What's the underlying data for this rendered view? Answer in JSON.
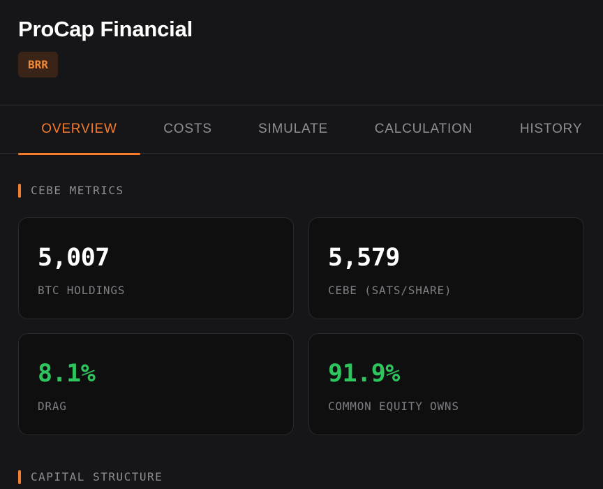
{
  "company": {
    "name": "ProCap Financial",
    "ticker": "BRR"
  },
  "tabs": [
    {
      "label": "OVERVIEW",
      "active": true
    },
    {
      "label": "COSTS",
      "active": false
    },
    {
      "label": "SIMULATE",
      "active": false
    },
    {
      "label": "CALCULATION",
      "active": false
    },
    {
      "label": "HISTORY",
      "active": false
    }
  ],
  "sections": {
    "cebe_metrics": "CEBE METRICS",
    "capital_structure": "CAPITAL STRUCTURE"
  },
  "metrics": [
    {
      "value": "5,007",
      "label": "BTC HOLDINGS"
    },
    {
      "value": "5,579",
      "label": "CEBE (SATS/SHARE)"
    },
    {
      "value": "8.1%",
      "label": "DRAG"
    },
    {
      "value": "91.9%",
      "label": "COMMON EQUITY OWNS"
    }
  ],
  "colors": {
    "accent": "#f47c2c",
    "positive": "#2ec55e",
    "background": "#161618",
    "card": "#0f0f10"
  }
}
